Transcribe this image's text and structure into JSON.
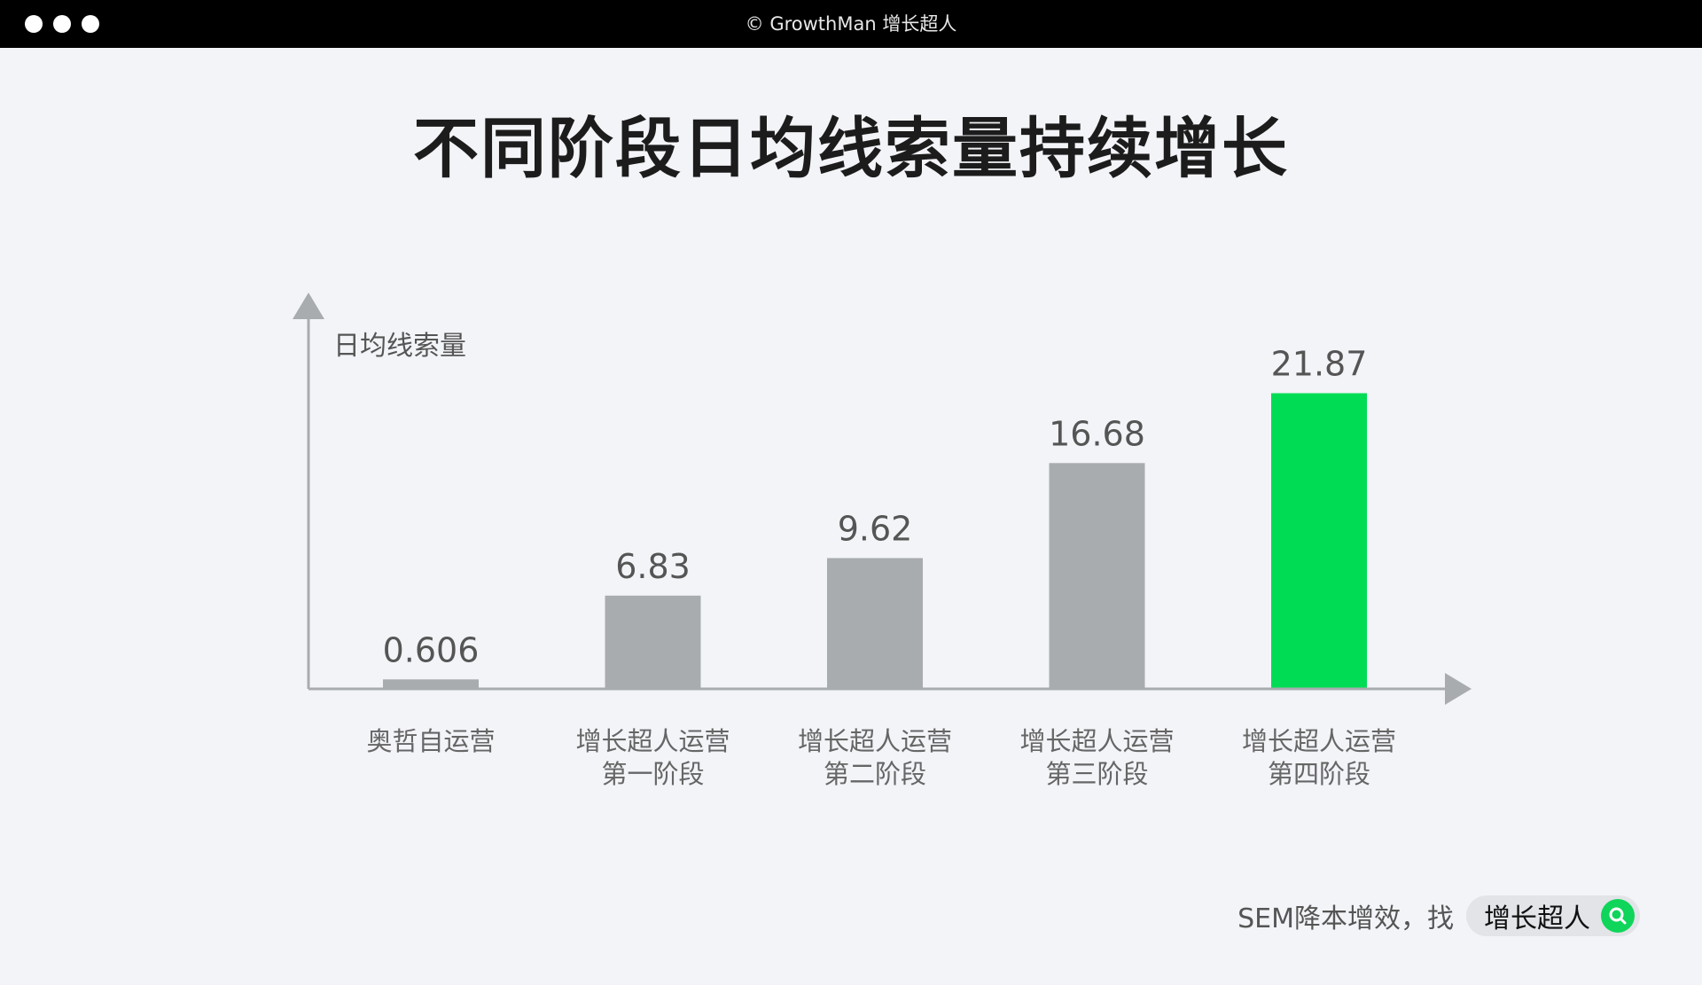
{
  "titlebar": {
    "text": "© GrowthMan 增长超人"
  },
  "page": {
    "title": "不同阶段日均线索量持续增长"
  },
  "footer": {
    "text": "SEM降本增效，找",
    "pill": "增长超人"
  },
  "icons": {
    "pill_icon": "search-icon"
  },
  "colors": {
    "bar": "#a9acaf",
    "highlight": "#00dd55",
    "axis": "#a9acaf"
  },
  "chart_data": {
    "type": "bar",
    "ylabel": "日均线索量",
    "xlabel": "",
    "categories": [
      [
        "奥哲自运营"
      ],
      [
        "增长超人运营",
        "第一阶段"
      ],
      [
        "增长超人运营",
        "第二阶段"
      ],
      [
        "增长超人运营",
        "第三阶段"
      ],
      [
        "增长超人运营",
        "第四阶段"
      ]
    ],
    "values": [
      0.606,
      6.83,
      9.62,
      16.68,
      21.87
    ],
    "labels": [
      "0.606",
      "6.83",
      "9.62",
      "16.68",
      "21.87"
    ],
    "highlight_index": 4,
    "ylim": [
      0,
      22
    ]
  }
}
